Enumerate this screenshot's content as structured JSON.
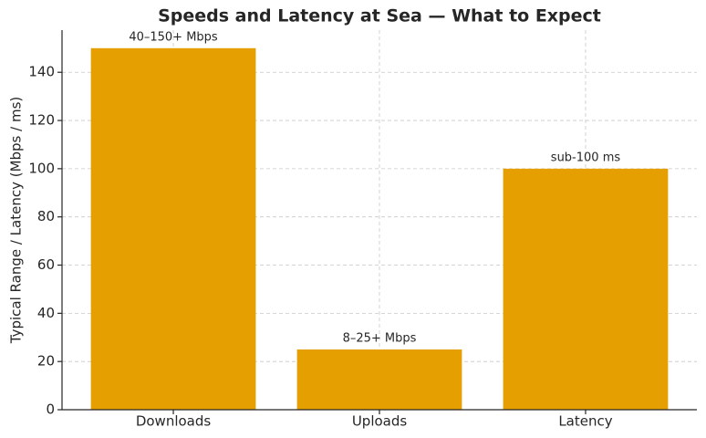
{
  "chart_data": {
    "type": "bar",
    "title": "Speeds and Latency at Sea — What to Expect",
    "y_label": "Typical Range / Latency (Mbps / ms)",
    "categories": [
      "Downloads",
      "Uploads",
      "Latency"
    ],
    "values": [
      150,
      25,
      100
    ],
    "value_labels": [
      "40–150+ Mbps",
      "8–25+ Mbps",
      "sub-100 ms"
    ],
    "color": "#e69f00",
    "ylim": [
      0,
      157.5
    ],
    "yticks": [
      0,
      20,
      40,
      60,
      80,
      100,
      120,
      140
    ],
    "grid": true
  }
}
